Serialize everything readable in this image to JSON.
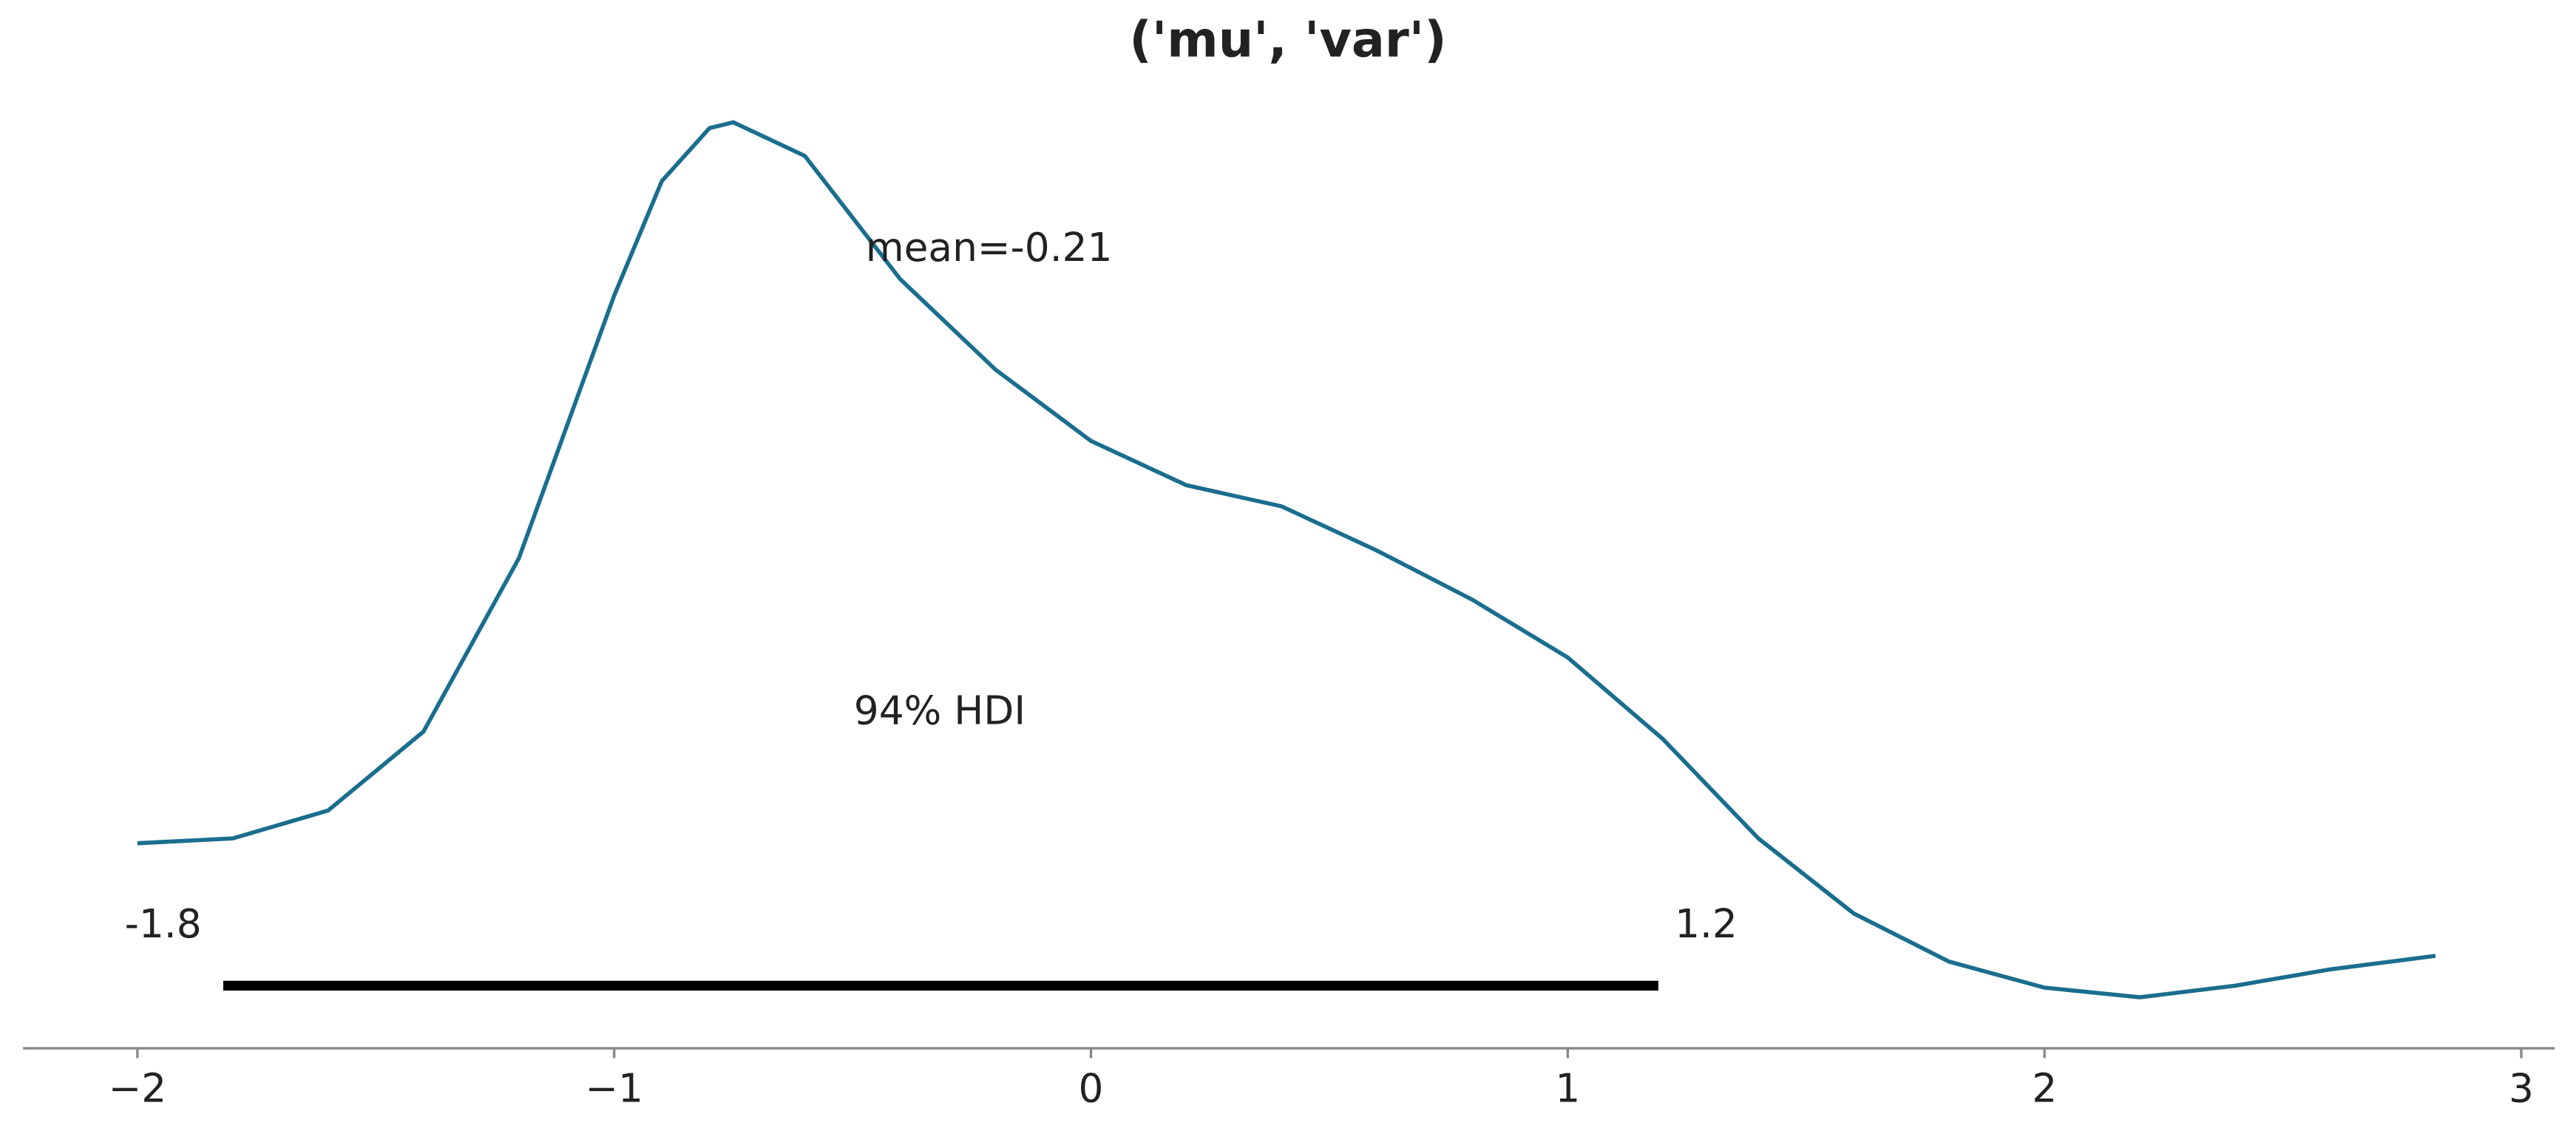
{
  "chart_data": {
    "type": "line",
    "title": "('mu', 'var')",
    "x": [
      -2,
      -1.8,
      -1.6,
      -1.4,
      -1.2,
      -1.0,
      -0.9,
      -0.8,
      -0.75,
      -0.6,
      -0.4,
      -0.2,
      0,
      0.2,
      0.4,
      0.6,
      0.8,
      1.0,
      1.2,
      1.4,
      1.6,
      1.8,
      2.0,
      2.2,
      2.4,
      2.6,
      2.82
    ],
    "series": [
      {
        "color": "#1a6e8e",
        "values": [
          0.213,
          0.218,
          0.247,
          0.329,
          0.509,
          0.782,
          0.901,
          0.956,
          0.962,
          0.927,
          0.799,
          0.705,
          0.631,
          0.585,
          0.563,
          0.517,
          0.466,
          0.406,
          0.321,
          0.218,
          0.14,
          0.09,
          0.063,
          0.053,
          0.065,
          0.082,
          0.096
        ]
      }
    ],
    "xlim": [
      -2.24,
      3.07
    ],
    "ylim": [
      0,
      1
    ],
    "xticks": [
      {
        "value": -2,
        "label": "−2"
      },
      {
        "value": -1,
        "label": "−1"
      },
      0,
      1,
      2,
      3
    ],
    "mean_label": "mean=-0.21",
    "hdi": {
      "label": "94% HDI",
      "values": [
        -1.82,
        1.19
      ],
      "value_labels": [
        "-1.8",
        "1.2"
      ],
      "y": 0.065,
      "color": "#000000"
    }
  }
}
